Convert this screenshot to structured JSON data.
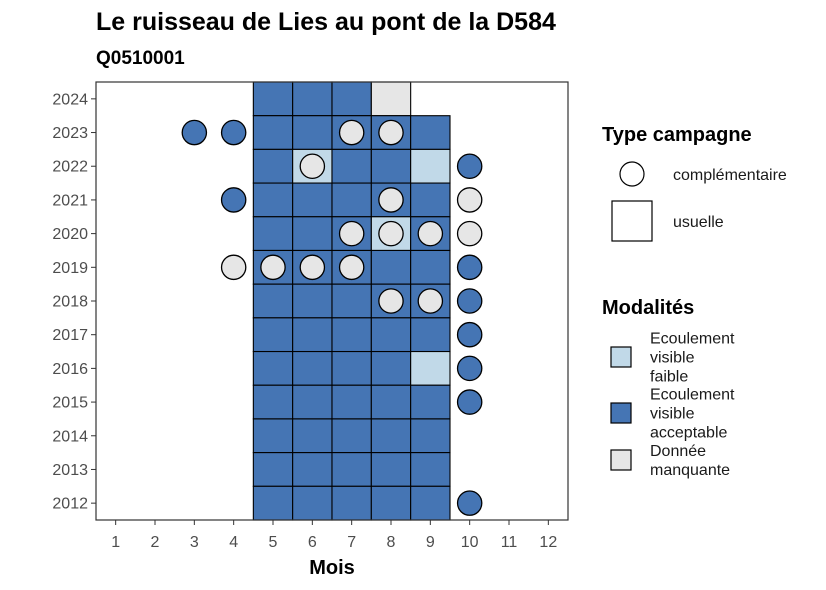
{
  "chart_data": {
    "type": "heatmap",
    "title": "Le ruisseau de Lies au pont de la D584",
    "subtitle": "Q0510001",
    "xlabel": "Mois",
    "ylabel": "",
    "x_ticks": [
      "1",
      "2",
      "3",
      "4",
      "5",
      "6",
      "7",
      "8",
      "9",
      "10",
      "11",
      "12"
    ],
    "y_ticks": [
      "2024",
      "2023",
      "2022",
      "2021",
      "2020",
      "2019",
      "2018",
      "2017",
      "2016",
      "2015",
      "2014",
      "2013",
      "2012"
    ],
    "xlim": [
      0.5,
      12.5
    ],
    "ylim": [
      2011.5,
      2024.5
    ],
    "grid": false,
    "legend_position": "right",
    "colors": {
      "acceptable": "#4575b4",
      "faible": "#c1d9e8",
      "manquante": "#e6e6e6"
    },
    "legend_type": {
      "title": "Type campagne",
      "items": [
        {
          "label": "complémentaire",
          "shape": "circle"
        },
        {
          "label": "usuelle",
          "shape": "square"
        }
      ]
    },
    "legend_modalites": {
      "title": "Modalités",
      "items": [
        {
          "key": "faible",
          "lines": [
            "Ecoulement",
            "visible",
            "faible"
          ]
        },
        {
          "key": "acceptable",
          "lines": [
            "Ecoulement",
            "visible",
            "acceptable"
          ]
        },
        {
          "key": "manquante",
          "lines": [
            "Donnée",
            "manquante"
          ]
        }
      ]
    },
    "squares": [
      {
        "year": 2024,
        "month": 5,
        "m": "acceptable"
      },
      {
        "year": 2024,
        "month": 6,
        "m": "acceptable"
      },
      {
        "year": 2024,
        "month": 7,
        "m": "acceptable"
      },
      {
        "year": 2024,
        "month": 8,
        "m": "manquante"
      },
      {
        "year": 2023,
        "month": 5,
        "m": "acceptable"
      },
      {
        "year": 2023,
        "month": 6,
        "m": "acceptable"
      },
      {
        "year": 2023,
        "month": 7,
        "m": "acceptable"
      },
      {
        "year": 2023,
        "month": 8,
        "m": "acceptable"
      },
      {
        "year": 2023,
        "month": 9,
        "m": "acceptable"
      },
      {
        "year": 2022,
        "month": 5,
        "m": "acceptable"
      },
      {
        "year": 2022,
        "month": 6,
        "m": "faible"
      },
      {
        "year": 2022,
        "month": 7,
        "m": "acceptable"
      },
      {
        "year": 2022,
        "month": 8,
        "m": "acceptable"
      },
      {
        "year": 2022,
        "month": 9,
        "m": "faible"
      },
      {
        "year": 2021,
        "month": 5,
        "m": "acceptable"
      },
      {
        "year": 2021,
        "month": 6,
        "m": "acceptable"
      },
      {
        "year": 2021,
        "month": 7,
        "m": "acceptable"
      },
      {
        "year": 2021,
        "month": 8,
        "m": "acceptable"
      },
      {
        "year": 2021,
        "month": 9,
        "m": "acceptable"
      },
      {
        "year": 2020,
        "month": 5,
        "m": "acceptable"
      },
      {
        "year": 2020,
        "month": 6,
        "m": "acceptable"
      },
      {
        "year": 2020,
        "month": 7,
        "m": "acceptable"
      },
      {
        "year": 2020,
        "month": 8,
        "m": "faible"
      },
      {
        "year": 2020,
        "month": 9,
        "m": "acceptable"
      },
      {
        "year": 2019,
        "month": 5,
        "m": "acceptable"
      },
      {
        "year": 2019,
        "month": 6,
        "m": "acceptable"
      },
      {
        "year": 2019,
        "month": 7,
        "m": "acceptable"
      },
      {
        "year": 2019,
        "month": 8,
        "m": "acceptable"
      },
      {
        "year": 2019,
        "month": 9,
        "m": "acceptable"
      },
      {
        "year": 2018,
        "month": 5,
        "m": "acceptable"
      },
      {
        "year": 2018,
        "month": 6,
        "m": "acceptable"
      },
      {
        "year": 2018,
        "month": 7,
        "m": "acceptable"
      },
      {
        "year": 2018,
        "month": 8,
        "m": "acceptable"
      },
      {
        "year": 2018,
        "month": 9,
        "m": "acceptable"
      },
      {
        "year": 2017,
        "month": 5,
        "m": "acceptable"
      },
      {
        "year": 2017,
        "month": 6,
        "m": "acceptable"
      },
      {
        "year": 2017,
        "month": 7,
        "m": "acceptable"
      },
      {
        "year": 2017,
        "month": 8,
        "m": "acceptable"
      },
      {
        "year": 2017,
        "month": 9,
        "m": "acceptable"
      },
      {
        "year": 2016,
        "month": 5,
        "m": "acceptable"
      },
      {
        "year": 2016,
        "month": 6,
        "m": "acceptable"
      },
      {
        "year": 2016,
        "month": 7,
        "m": "acceptable"
      },
      {
        "year": 2016,
        "month": 8,
        "m": "acceptable"
      },
      {
        "year": 2016,
        "month": 9,
        "m": "faible"
      },
      {
        "year": 2015,
        "month": 5,
        "m": "acceptable"
      },
      {
        "year": 2015,
        "month": 6,
        "m": "acceptable"
      },
      {
        "year": 2015,
        "month": 7,
        "m": "acceptable"
      },
      {
        "year": 2015,
        "month": 8,
        "m": "acceptable"
      },
      {
        "year": 2015,
        "month": 9,
        "m": "acceptable"
      },
      {
        "year": 2014,
        "month": 5,
        "m": "acceptable"
      },
      {
        "year": 2014,
        "month": 6,
        "m": "acceptable"
      },
      {
        "year": 2014,
        "month": 7,
        "m": "acceptable"
      },
      {
        "year": 2014,
        "month": 8,
        "m": "acceptable"
      },
      {
        "year": 2014,
        "month": 9,
        "m": "acceptable"
      },
      {
        "year": 2013,
        "month": 5,
        "m": "acceptable"
      },
      {
        "year": 2013,
        "month": 6,
        "m": "acceptable"
      },
      {
        "year": 2013,
        "month": 7,
        "m": "acceptable"
      },
      {
        "year": 2013,
        "month": 8,
        "m": "acceptable"
      },
      {
        "year": 2013,
        "month": 9,
        "m": "acceptable"
      },
      {
        "year": 2012,
        "month": 5,
        "m": "acceptable"
      },
      {
        "year": 2012,
        "month": 6,
        "m": "acceptable"
      },
      {
        "year": 2012,
        "month": 7,
        "m": "acceptable"
      },
      {
        "year": 2012,
        "month": 8,
        "m": "acceptable"
      },
      {
        "year": 2012,
        "month": 9,
        "m": "acceptable"
      }
    ],
    "circles": [
      {
        "year": 2023,
        "month": 3,
        "m": "acceptable"
      },
      {
        "year": 2023,
        "month": 4,
        "m": "acceptable"
      },
      {
        "year": 2023,
        "month": 7,
        "m": "manquante"
      },
      {
        "year": 2023,
        "month": 8,
        "m": "manquante"
      },
      {
        "year": 2022,
        "month": 6,
        "m": "manquante"
      },
      {
        "year": 2022,
        "month": 10,
        "m": "acceptable"
      },
      {
        "year": 2021,
        "month": 4,
        "m": "acceptable"
      },
      {
        "year": 2021,
        "month": 8,
        "m": "manquante"
      },
      {
        "year": 2021,
        "month": 10,
        "m": "manquante"
      },
      {
        "year": 2020,
        "month": 7,
        "m": "manquante"
      },
      {
        "year": 2020,
        "month": 8,
        "m": "manquante"
      },
      {
        "year": 2020,
        "month": 9,
        "m": "manquante"
      },
      {
        "year": 2020,
        "month": 10,
        "m": "manquante"
      },
      {
        "year": 2019,
        "month": 4,
        "m": "manquante"
      },
      {
        "year": 2019,
        "month": 5,
        "m": "manquante"
      },
      {
        "year": 2019,
        "month": 6,
        "m": "manquante"
      },
      {
        "year": 2019,
        "month": 7,
        "m": "manquante"
      },
      {
        "year": 2019,
        "month": 10,
        "m": "acceptable"
      },
      {
        "year": 2018,
        "month": 8,
        "m": "manquante"
      },
      {
        "year": 2018,
        "month": 9,
        "m": "manquante"
      },
      {
        "year": 2018,
        "month": 10,
        "m": "acceptable"
      },
      {
        "year": 2017,
        "month": 10,
        "m": "acceptable"
      },
      {
        "year": 2016,
        "month": 10,
        "m": "acceptable"
      },
      {
        "year": 2015,
        "month": 10,
        "m": "acceptable"
      },
      {
        "year": 2012,
        "month": 10,
        "m": "acceptable"
      }
    ]
  }
}
